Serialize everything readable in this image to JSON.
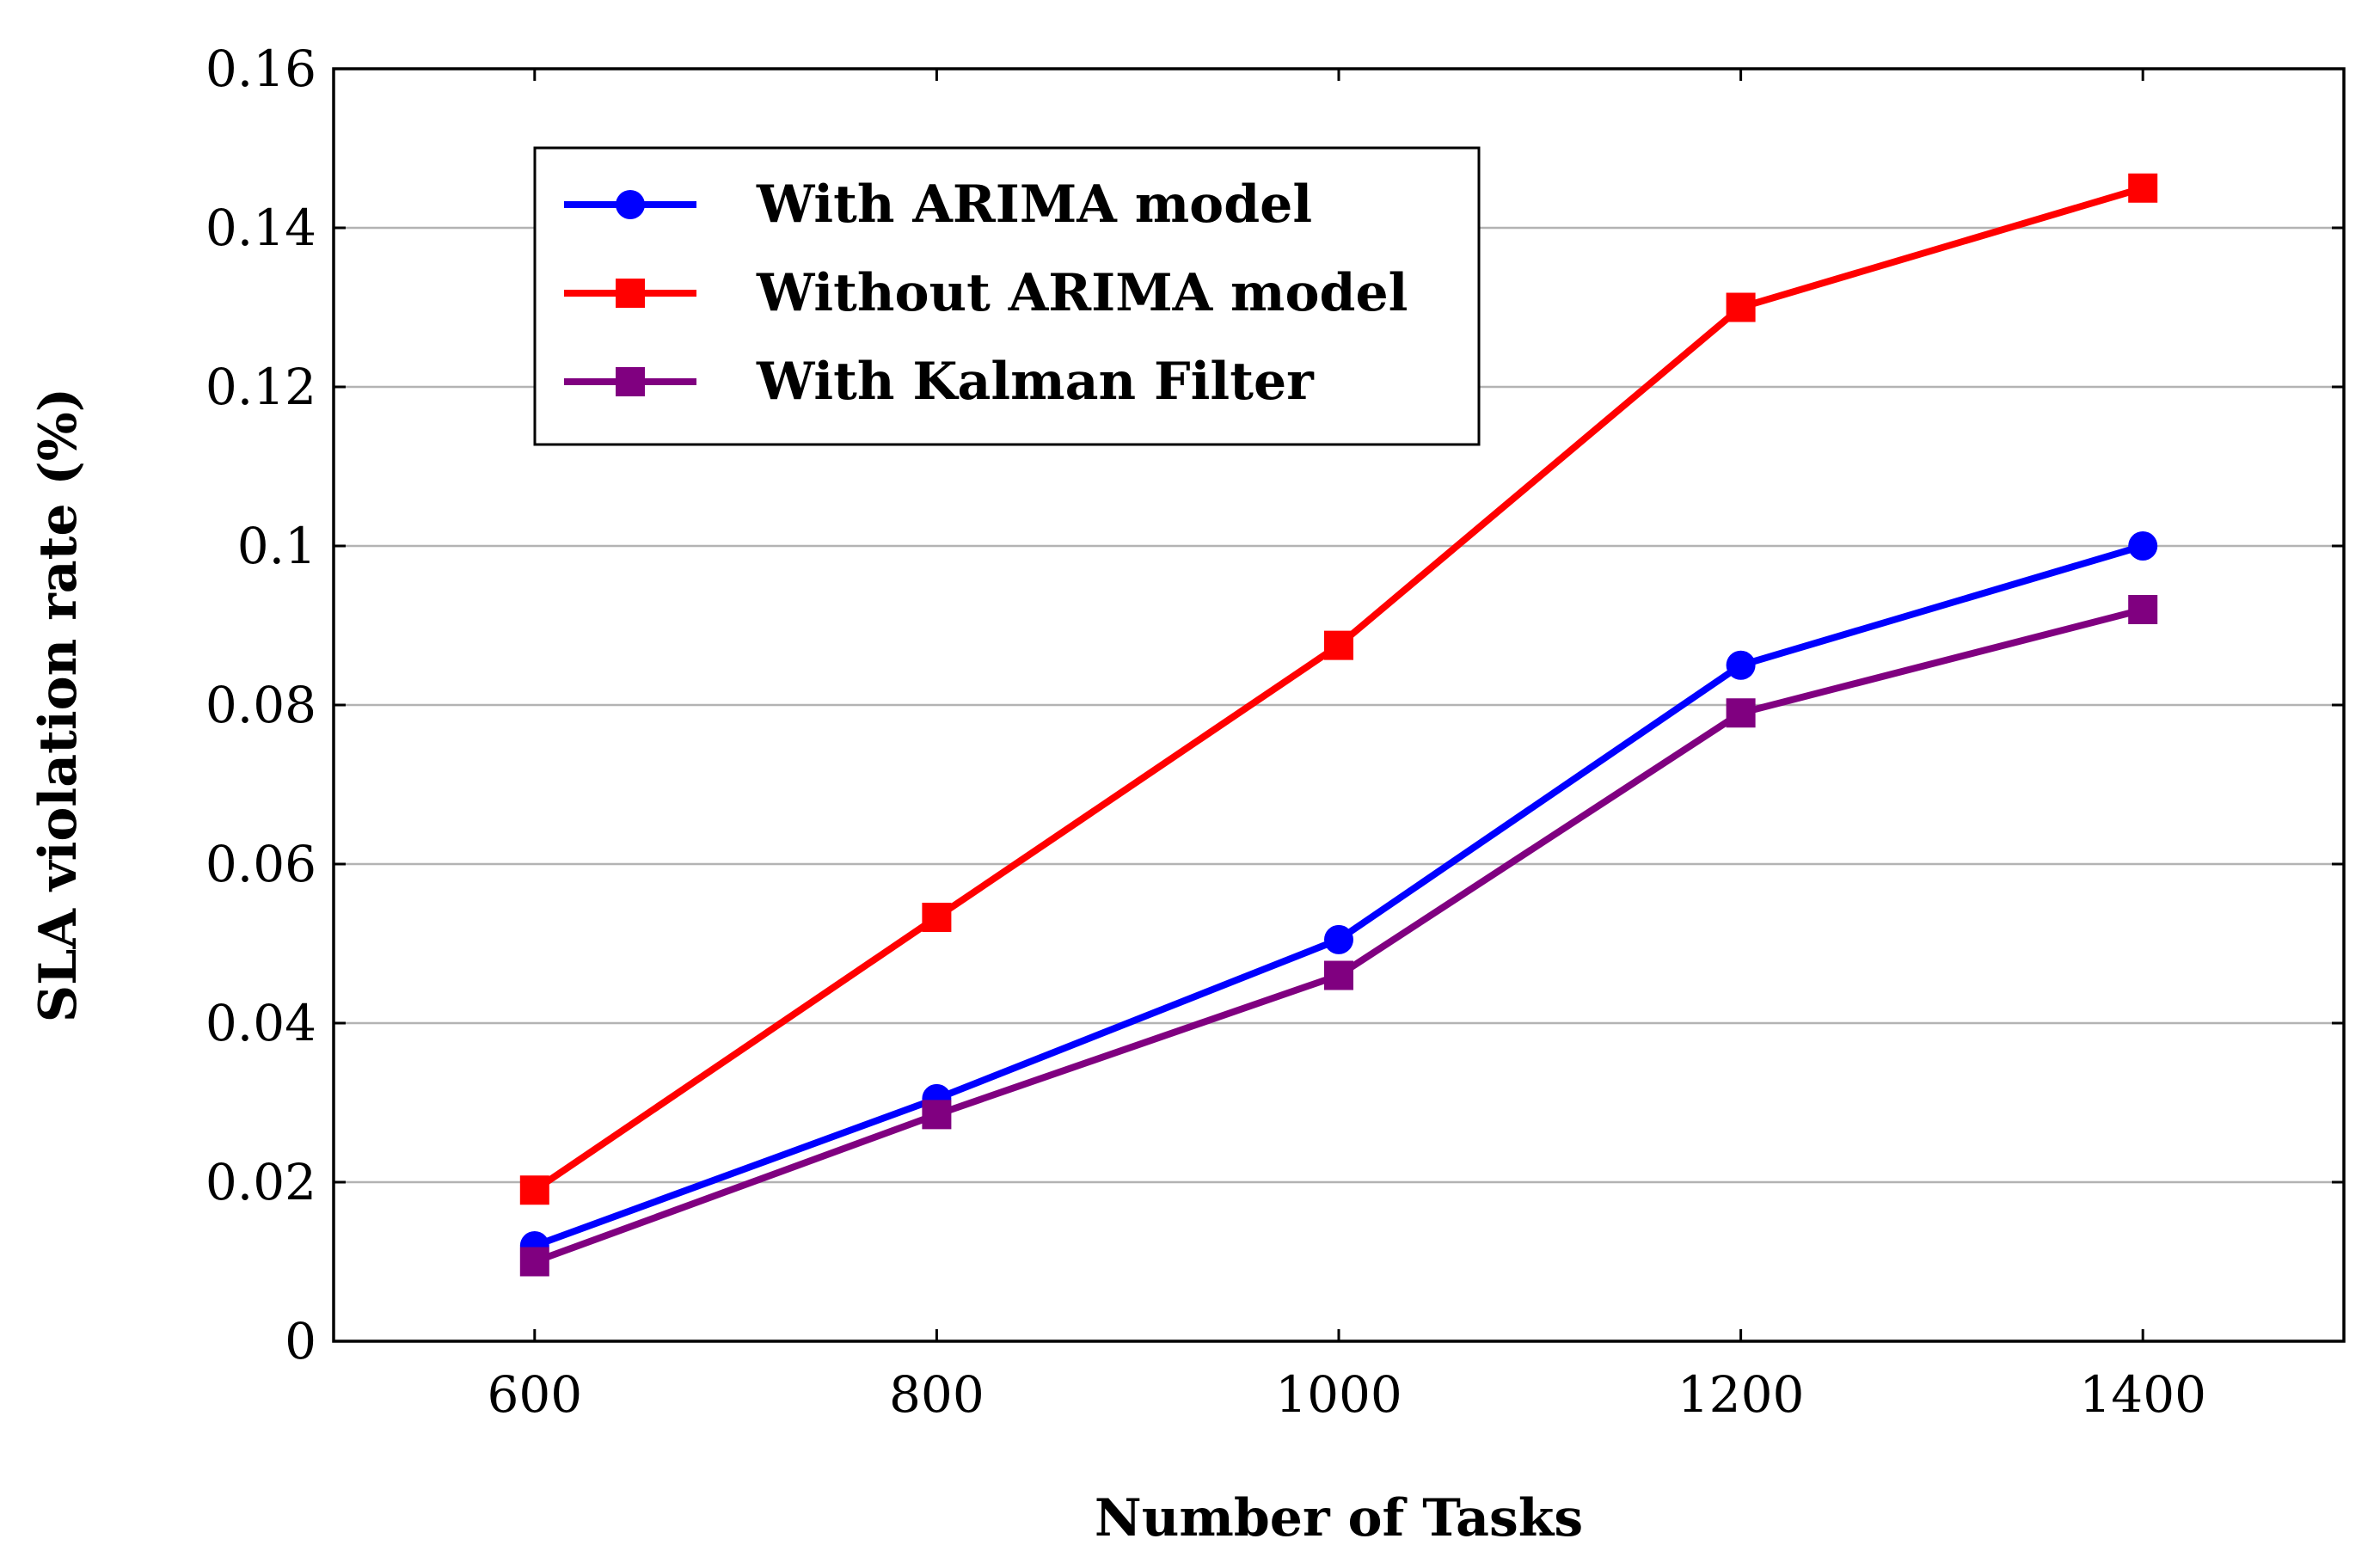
{
  "chart_data": {
    "type": "line",
    "title": "",
    "xlabel": "Number of Tasks",
    "ylabel": "SLA violation rate (%)",
    "x": [
      600,
      800,
      1000,
      1200,
      1400
    ],
    "xlim": [
      500,
      1500
    ],
    "ylim": [
      0,
      0.16
    ],
    "xticks": [
      600,
      800,
      1000,
      1200,
      1400
    ],
    "xtick_labels": [
      "600",
      "800",
      "1000",
      "1200",
      "1400"
    ],
    "yticks": [
      0,
      0.02,
      0.04,
      0.06,
      0.08,
      0.1,
      0.12,
      0.14,
      0.16
    ],
    "ytick_labels": [
      "0",
      "0.02",
      "0.04",
      "0.06",
      "0.08",
      "0.1",
      "0.12",
      "0.14",
      "0.16"
    ],
    "grid": "horizontal",
    "legend_position": "top-left",
    "series": [
      {
        "name": "With ARIMA model",
        "color": "#0000ff",
        "marker": "circle",
        "values": [
          0.012,
          0.0305,
          0.0505,
          0.085,
          0.1
        ]
      },
      {
        "name": "Without ARIMA model",
        "color": "#ff0000",
        "marker": "square",
        "values": [
          0.019,
          0.0533,
          0.0875,
          0.13,
          0.145
        ]
      },
      {
        "name": "With Kalman Filter",
        "color": "#800080",
        "marker": "square",
        "values": [
          0.01,
          0.0285,
          0.046,
          0.079,
          0.092
        ]
      }
    ]
  }
}
